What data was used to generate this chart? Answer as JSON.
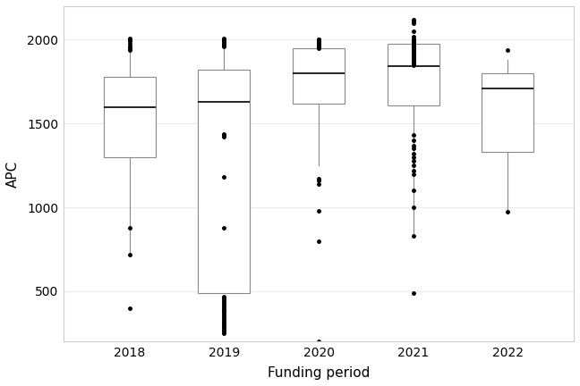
{
  "title": "",
  "xlabel": "Funding period",
  "ylabel": "APC",
  "background_color": "#ffffff",
  "grid_color": "#ebebeb",
  "panel_border_color": "#cccccc",
  "years": [
    "2018",
    "2019",
    "2020",
    "2021",
    "2022"
  ],
  "box_stats": {
    "2018": {
      "whislo": 720,
      "q1": 1300,
      "med": 1595,
      "q3": 1780,
      "whishi": 2005,
      "fliers_above": [
        2010,
        2005,
        2005,
        1990,
        1975,
        1960,
        1950,
        1940
      ],
      "fliers_below": [
        880,
        720,
        400
      ]
    },
    "2019": {
      "whislo": 490,
      "q1": 490,
      "med": 1630,
      "q3": 1820,
      "whishi": 2005,
      "fliers_above": [
        2010,
        2005,
        2000,
        1995,
        1990,
        1985,
        1980,
        1975,
        1970,
        1965,
        1960
      ],
      "fliers_below": [
        470,
        460,
        450,
        440,
        430,
        420,
        410,
        400,
        390,
        380,
        370,
        360,
        350,
        340,
        330,
        320,
        310,
        300,
        290,
        280,
        270,
        260,
        250,
        880,
        1180,
        1420,
        1430,
        1440
      ]
    },
    "2020": {
      "whislo": 1250,
      "q1": 1620,
      "med": 1800,
      "q3": 1950,
      "whishi": 1950,
      "fliers_above": [
        2005,
        2000,
        1995,
        1990,
        1985,
        1980,
        1975,
        1970,
        1965,
        1960,
        1955,
        1950
      ],
      "fliers_below": [
        980,
        1140,
        1160,
        1170,
        800,
        200
      ]
    },
    "2021": {
      "whislo": 830,
      "q1": 1610,
      "med": 1845,
      "q3": 1975,
      "whishi": 2005,
      "fliers_above": [
        2020,
        2050,
        2100,
        2110,
        2120,
        2005,
        2000,
        1995,
        1990,
        1985,
        1980,
        1975,
        1970,
        1965,
        1960,
        1955,
        1950,
        1945,
        1940,
        1935,
        1930,
        1925,
        1920,
        1915,
        1910,
        1905,
        1900,
        1895,
        1890,
        1885,
        1880,
        1875,
        1870,
        1865,
        1860,
        1855,
        1850
      ],
      "fliers_below": [
        490,
        830,
        1000,
        1100,
        1200,
        1220,
        1250,
        1280,
        1300,
        1320,
        1350,
        1370,
        1400,
        1430
      ]
    },
    "2022": {
      "whislo": 975,
      "q1": 1330,
      "med": 1710,
      "q3": 1800,
      "whishi": 1880,
      "fliers_above": [
        1940
      ],
      "fliers_below": [
        975
      ]
    }
  },
  "box_color": "#ffffff",
  "box_edge_color": "#888888",
  "median_color": "#000000",
  "whisker_color": "#888888",
  "flier_color": "#000000",
  "flier_size": 2.5,
  "box_width": 0.55,
  "ylim": [
    200,
    2200
  ],
  "yticks": [
    500,
    1000,
    1500,
    2000
  ],
  "axis_fontsize": 11,
  "tick_fontsize": 10
}
